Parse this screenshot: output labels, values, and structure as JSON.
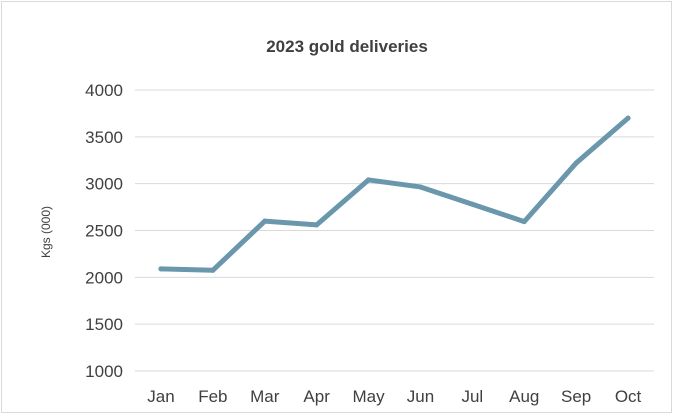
{
  "chart_data": {
    "type": "line",
    "title": "2023 gold deliveries",
    "xlabel": "",
    "ylabel": "Kgs (000)",
    "categories": [
      "Jan",
      "Feb",
      "Mar",
      "Apr",
      "May",
      "Jun",
      "Jul",
      "Aug",
      "Sep",
      "Oct"
    ],
    "series": [
      {
        "values": [
          2090,
          2075,
          2600,
          2560,
          3040,
          2965,
          2780,
          2595,
          3220,
          3700
        ]
      }
    ],
    "ylim": [
      1000,
      4000
    ],
    "yticks": [
      "1000",
      "1500",
      "2000",
      "2500",
      "3000",
      "3500",
      "4000"
    ],
    "grid": true,
    "legend": "none",
    "colors": {
      "line": "#6b97ad",
      "grid": "#d9d9d9",
      "text": "#404040"
    }
  }
}
